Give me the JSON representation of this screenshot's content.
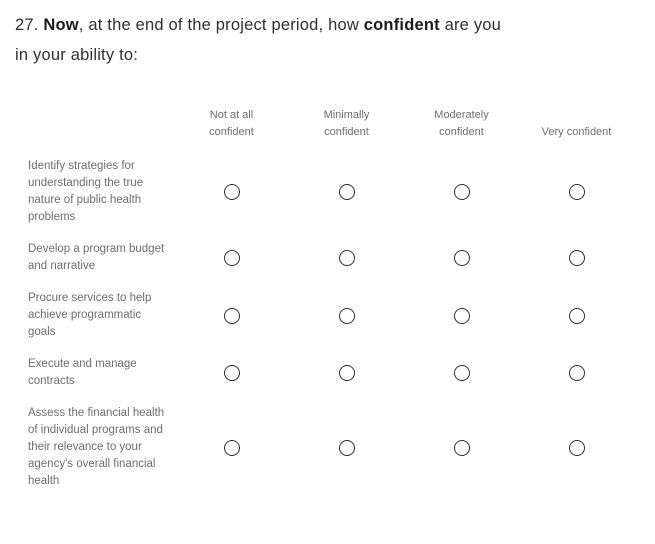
{
  "question": {
    "seg_number": "27. ",
    "seg_bold1": "Now",
    "seg_mid": ", at the end of the project period, how ",
    "seg_bold2": "confident",
    "seg_end": " are you",
    "line2": "in your ability to:"
  },
  "matrix": {
    "columns": [
      "Not at all confident",
      "Minimally confident",
      "Moderately confident",
      "Very confident"
    ],
    "rows": [
      {
        "label": "Identify strategies for understanding the true nature of public health problems"
      },
      {
        "label": "Develop a program budget and narrative"
      },
      {
        "label": "Procure services to help achieve programmatic goals"
      },
      {
        "label": "Execute and manage contracts"
      },
      {
        "label": "Assess the financial health of individual programs and their relevance to your agency's overall financial health"
      }
    ]
  },
  "colors": {
    "background": "#ffffff",
    "question_text": "#303030",
    "secondary_text": "#6e6e6e",
    "radio_border": "#2f2f2f"
  }
}
